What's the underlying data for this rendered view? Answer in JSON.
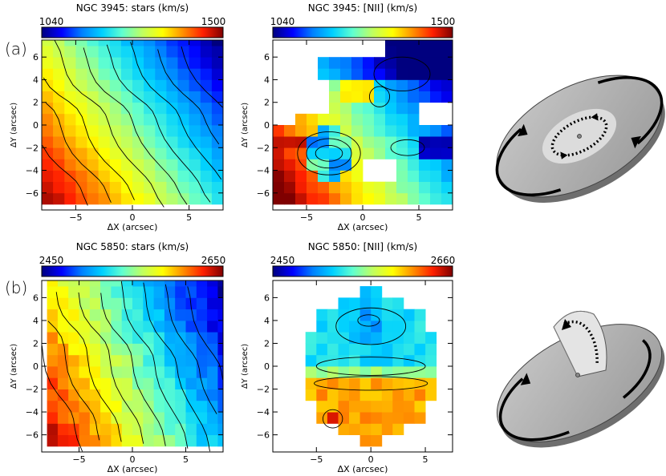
{
  "figure": {
    "row_labels": [
      "(a)",
      "(b)"
    ],
    "colormap": [
      "#00007f",
      "#0000ff",
      "#0080ff",
      "#00d0ff",
      "#60ffd0",
      "#c0ff60",
      "#ffff00",
      "#ff9000",
      "#ff2000",
      "#7f0000"
    ]
  },
  "chart_data": [
    {
      "type": "heatmap",
      "title": "NGC 3945: stars (km/s)",
      "colorbar": {
        "min_label": "1040",
        "max_label": "1500",
        "min": 1040,
        "max": 1500
      },
      "xlabel": "ΔX (arcsec)",
      "ylabel": "ΔY (arcsec)",
      "xlim": [
        -8,
        8
      ],
      "ylim": [
        -7.5,
        7.5
      ],
      "xticks": [
        -5,
        0,
        5
      ],
      "yticks": [
        -6,
        -4,
        -2,
        0,
        2,
        4,
        6
      ],
      "field": {
        "kind": "gradient",
        "angle_deg": 35,
        "min": 1040,
        "max": 1500,
        "span": 10.5,
        "center": [
          0,
          0
        ],
        "wobble": 10
      },
      "mask": "none"
    },
    {
      "type": "heatmap",
      "title": "NGC 3945: [NII] (km/s)",
      "colorbar": {
        "min_label": "1040",
        "max_label": "1500",
        "min": 1040,
        "max": 1500
      },
      "xlabel": "ΔX (arcsec)",
      "ylabel": "ΔY (arcsec)",
      "xlim": [
        -8,
        8
      ],
      "ylim": [
        -7.5,
        7.5
      ],
      "xticks": [
        -5,
        0,
        5
      ],
      "yticks": [
        -6,
        -4,
        -2,
        0,
        2,
        4,
        6
      ],
      "field": {
        "kind": "gas3945",
        "min": 1040,
        "max": 1500
      },
      "mask": "gas3945"
    },
    {
      "type": "heatmap",
      "title": "NGC 5850: stars (km/s)",
      "colorbar": {
        "min_label": "2450",
        "max_label": "2650",
        "min": 2450,
        "max": 2650
      },
      "xlabel": "ΔX (arcsec)",
      "ylabel": "ΔY (arcsec)",
      "xlim": [
        -8.5,
        8.5
      ],
      "ylim": [
        -7.5,
        7.5
      ],
      "xticks": [
        -5,
        0,
        5
      ],
      "yticks": [
        -6,
        -4,
        -2,
        0,
        2,
        4,
        6
      ],
      "field": {
        "kind": "gradient",
        "angle_deg": 25,
        "min": 2450,
        "max": 2650,
        "span": 11,
        "center": [
          0,
          0
        ],
        "wobble": 18
      },
      "mask": "none"
    },
    {
      "type": "heatmap",
      "title": "NGC 5850: [NII] (km/s)",
      "colorbar": {
        "min_label": "2450",
        "max_label": "2660",
        "min": 2450,
        "max": 2660
      },
      "xlabel": "ΔX (arcsec)",
      "ylabel": "ΔY (arcsec)",
      "xlim": [
        -9,
        7.5
      ],
      "ylim": [
        -7.5,
        7.5
      ],
      "xticks": [
        -5,
        0,
        5
      ],
      "yticks": [
        -6,
        -4,
        -2,
        0,
        2,
        4,
        6
      ],
      "field": {
        "kind": "gas5850",
        "min": 2450,
        "max": 2660
      },
      "mask": "gas5850"
    }
  ]
}
